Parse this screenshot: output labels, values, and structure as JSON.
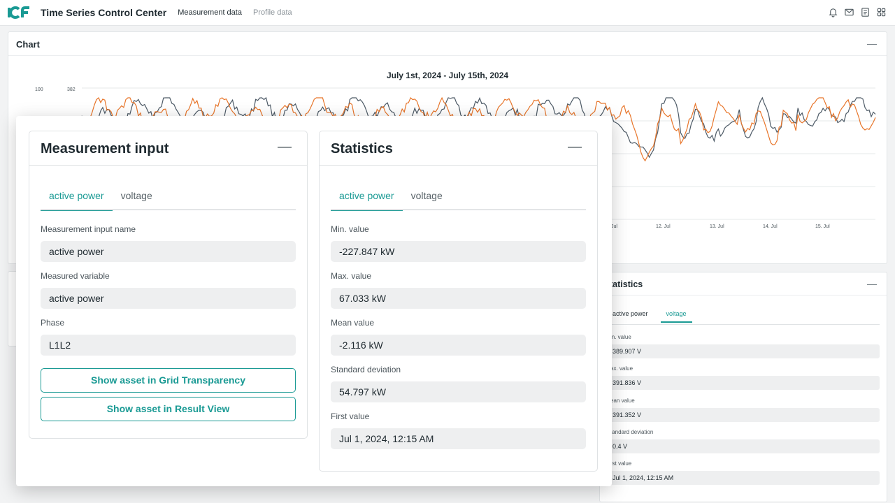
{
  "app": {
    "title": "Time Series Control Center",
    "nav": [
      "Measurement data",
      "Profile data"
    ],
    "icons": [
      "bell-icon",
      "mail-icon",
      "document-icon",
      "grid-icon"
    ],
    "accent_color": "#1a9a94"
  },
  "chart_panel": {
    "title": "Chart",
    "chart_data": {
      "type": "line",
      "title": "July 1st, 2024 - July 15th, 2024",
      "y_ticks_left": [
        "100"
      ],
      "y_ticks_right": [
        "382"
      ],
      "x_ticks": [
        "Jul",
        "12. Jul",
        "13. Jul",
        "14. Jul",
        "15. Jul"
      ],
      "series": [
        {
          "color": "#4d5a66"
        },
        {
          "color": "#e8762b"
        }
      ],
      "grid": true
    }
  },
  "measurement_input": {
    "title": "Measurement input",
    "tabs": [
      "active power",
      "voltage"
    ],
    "active_tab": 0,
    "fields": [
      {
        "label": "Measurement input name",
        "value": "active power"
      },
      {
        "label": "Measured variable",
        "value": "active power"
      },
      {
        "label": "Phase",
        "value": "L1L2"
      }
    ],
    "buttons": [
      "Show asset in Grid Transparency",
      "Show asset in Result View"
    ]
  },
  "statistics_front": {
    "title": "Statistics",
    "tabs": [
      "active power",
      "voltage"
    ],
    "active_tab": 0,
    "fields": [
      {
        "label": "Min. value",
        "value": "-227.847 kW"
      },
      {
        "label": "Max. value",
        "value": "67.033 kW"
      },
      {
        "label": "Mean value",
        "value": "-2.116 kW"
      },
      {
        "label": "Standard deviation",
        "value": "54.797 kW"
      },
      {
        "label": "First value",
        "value": "Jul 1, 2024, 12:15 AM"
      }
    ]
  },
  "statistics_back": {
    "title": "tatistics",
    "tabs": [
      "active power",
      "voltage"
    ],
    "active_tab": 1,
    "fields": [
      {
        "label": "in. value",
        "value": "389.907 V"
      },
      {
        "label": "ax. value",
        "value": "391.836 V"
      },
      {
        "label": "ean value",
        "value": "391.352 V"
      },
      {
        "label": "tandard deviation",
        "value": "0.4 V"
      },
      {
        "label": "rst value",
        "value": "Jul 1, 2024, 12:15 AM"
      }
    ]
  }
}
